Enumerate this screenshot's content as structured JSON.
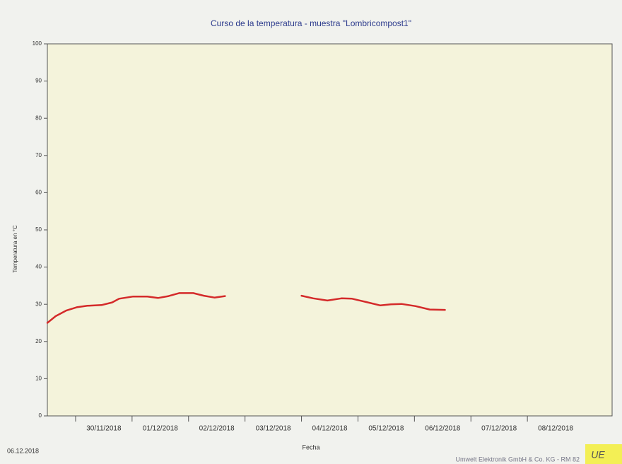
{
  "chart_data": {
    "type": "line",
    "title": "Curso de la temperatura -  muestra \"Lombricompost1\"",
    "xlabel": "Fecha",
    "ylabel": "Temperatura en °C",
    "x": [
      "2018-11-29T12:00",
      "2018-11-29T15:30",
      "2018-11-29T20:00",
      "2018-11-30T00:30",
      "2018-11-30T05:00",
      "2018-11-30T11:00",
      "2018-11-30T15:30",
      "2018-11-30T18:30",
      "2018-12-01T00:30",
      "2018-12-01T06:30",
      "2018-12-01T11:00",
      "2018-12-01T15:30",
      "2018-12-01T20:00",
      "2018-12-02T02:00",
      "2018-12-02T06:30",
      "2018-12-02T11:00",
      "2018-12-02T15:30",
      "2018-12-03T12:00",
      "2018-12-04T00:00",
      "2018-12-04T05:00",
      "2018-12-04T11:00",
      "2018-12-04T17:00",
      "2018-12-04T21:30",
      "2018-12-05T03:30",
      "2018-12-05T09:30",
      "2018-12-05T14:00",
      "2018-12-05T18:30",
      "2018-12-06T00:30",
      "2018-12-06T06:30",
      "2018-12-06T13:00"
    ],
    "series": [
      {
        "name": "Lombricompost1",
        "color": "#d42a2a",
        "values": [
          25,
          26.8,
          28.3,
          29.2,
          29.6,
          29.8,
          30.5,
          31.5,
          32.1,
          32.1,
          31.7,
          32.2,
          33,
          33,
          32.3,
          31.8,
          32.2,
          null,
          32.3,
          31.6,
          31,
          31.6,
          31.5,
          30.6,
          29.7,
          30,
          30.1,
          29.5,
          28.6,
          28.5
        ]
      }
    ],
    "xlim": [
      "2018-11-29T12:00",
      "2018-12-09T12:00"
    ],
    "xticks": [
      {
        "value": "2018-11-30T00:00",
        "label": "30/11/2018"
      },
      {
        "value": "2018-12-01T00:00",
        "label": "01/12/2018"
      },
      {
        "value": "2018-12-02T00:00",
        "label": "02/12/2018"
      },
      {
        "value": "2018-12-03T00:00",
        "label": "03/12/2018"
      },
      {
        "value": "2018-12-04T00:00",
        "label": "04/12/2018"
      },
      {
        "value": "2018-12-05T00:00",
        "label": "05/12/2018"
      },
      {
        "value": "2018-12-06T00:00",
        "label": "06/12/2018"
      },
      {
        "value": "2018-12-07T00:00",
        "label": "07/12/2018"
      },
      {
        "value": "2018-12-08T00:00",
        "label": "08/12/2018"
      }
    ],
    "ylim": [
      0,
      100
    ],
    "yticks": [
      0,
      10,
      20,
      30,
      40,
      50,
      60,
      70,
      80,
      90,
      100
    ],
    "grid": false
  },
  "footer": {
    "date": "06.12.2018",
    "company": "Umwelt Elektronik GmbH & Co. KG - RM 82",
    "logo": "UE"
  }
}
